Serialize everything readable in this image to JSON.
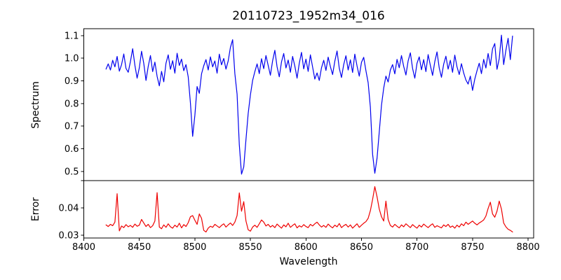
{
  "chart_data": {
    "type": "line",
    "title": "20110723_1952m34_016",
    "xlabel": "Wavelength",
    "grid": false,
    "legend": "none",
    "xlim": [
      8400,
      8805
    ],
    "xticks": [
      8400,
      8450,
      8500,
      8550,
      8600,
      8650,
      8700,
      8750,
      8800
    ],
    "xtick_labels": [
      "8400",
      "8450",
      "8500",
      "8550",
      "8600",
      "8650",
      "8700",
      "8750",
      "8800"
    ],
    "panels": [
      {
        "name": "spectrum",
        "ylabel": "Spectrum",
        "color": "#0000ee",
        "ylim": [
          0.4595,
          1.1305
        ],
        "yticks": [
          0.5,
          0.6,
          0.7,
          0.8,
          0.9,
          1.0,
          1.1
        ],
        "ytick_labels": [
          "0.5",
          "0.6",
          "0.7",
          "0.8",
          "0.9",
          "1.0",
          "1.1"
        ],
        "yticks_mark_only": [],
        "x_start": 8420,
        "x_step": 2,
        "values": [
          0.952,
          0.975,
          0.948,
          0.991,
          0.962,
          1.008,
          0.943,
          0.972,
          1.019,
          0.955,
          0.938,
          0.986,
          1.042,
          0.969,
          0.912,
          0.958,
          1.031,
          0.977,
          0.902,
          0.964,
          1.012,
          0.941,
          0.983,
          0.92,
          0.878,
          0.942,
          0.896,
          0.978,
          1.015,
          0.951,
          0.989,
          0.934,
          1.022,
          0.968,
          0.996,
          0.945,
          0.972,
          0.918,
          0.802,
          0.655,
          0.748,
          0.875,
          0.845,
          0.931,
          0.967,
          0.994,
          0.948,
          1.006,
          0.962,
          0.988,
          0.934,
          1.018,
          0.971,
          0.999,
          0.952,
          0.988,
          1.048,
          1.082,
          0.932,
          0.841,
          0.618,
          0.488,
          0.52,
          0.641,
          0.756,
          0.838,
          0.902,
          0.941,
          0.975,
          0.932,
          0.998,
          0.954,
          1.012,
          0.968,
          0.925,
          0.989,
          1.035,
          0.962,
          0.918,
          0.984,
          1.021,
          0.957,
          0.992,
          0.938,
          1.008,
          0.965,
          0.912,
          0.978,
          1.026,
          0.953,
          0.996,
          0.942,
          1.015,
          0.961,
          0.908,
          0.935,
          0.902,
          0.958,
          0.991,
          0.946,
          1.005,
          0.963,
          0.928,
          0.987,
          1.032,
          0.956,
          0.915,
          0.972,
          1.011,
          0.948,
          0.993,
          0.937,
          1.018,
          0.966,
          0.921,
          0.982,
          1.004,
          0.945,
          0.892,
          0.784,
          0.576,
          0.492,
          0.558,
          0.674,
          0.792,
          0.868,
          0.921,
          0.895,
          0.948,
          0.972,
          0.931,
          0.995,
          0.958,
          1.012,
          0.964,
          0.926,
          0.988,
          1.024,
          0.955,
          0.912,
          0.978,
          1.006,
          0.949,
          0.994,
          0.941,
          1.016,
          0.968,
          0.924,
          0.985,
          1.028,
          0.957,
          0.916,
          0.974,
          1.009,
          0.952,
          0.991,
          0.938,
          1.014,
          0.962,
          0.928,
          0.976,
          0.935,
          0.904,
          0.886,
          0.921,
          0.858,
          0.908,
          0.945,
          0.978,
          0.932,
          0.995,
          0.957,
          1.021,
          0.968,
          1.042,
          1.065,
          0.951,
          0.998,
          1.102,
          0.972,
          1.035,
          1.088,
          0.994,
          1.098
        ]
      },
      {
        "name": "error",
        "ylabel": "Error",
        "color": "#ee0000",
        "ylim": [
          0.029,
          0.05
        ],
        "yticks": [
          0.03,
          0.04
        ],
        "ytick_labels": [
          "0.03",
          "0.04"
        ],
        "yticks_mark_only": [
          0.05
        ],
        "x_start": 8420,
        "x_step": 2,
        "values": [
          0.0338,
          0.0332,
          0.034,
          0.0335,
          0.0348,
          0.0452,
          0.0316,
          0.0334,
          0.0328,
          0.0339,
          0.0331,
          0.0336,
          0.0329,
          0.0341,
          0.0333,
          0.0337,
          0.0358,
          0.0345,
          0.0332,
          0.034,
          0.0328,
          0.0335,
          0.0352,
          0.0456,
          0.033,
          0.0324,
          0.0338,
          0.0329,
          0.0342,
          0.0331,
          0.0326,
          0.0337,
          0.033,
          0.0344,
          0.0327,
          0.0339,
          0.0332,
          0.0346,
          0.0368,
          0.0372,
          0.0355,
          0.034,
          0.0378,
          0.0362,
          0.0318,
          0.0312,
          0.0326,
          0.0333,
          0.0329,
          0.034,
          0.0334,
          0.0328,
          0.0336,
          0.0342,
          0.033,
          0.0338,
          0.0345,
          0.0336,
          0.0348,
          0.0372,
          0.0455,
          0.0388,
          0.0423,
          0.0352,
          0.032,
          0.0315,
          0.033,
          0.0337,
          0.0329,
          0.0342,
          0.0356,
          0.0348,
          0.0334,
          0.034,
          0.033,
          0.0336,
          0.0328,
          0.0341,
          0.0333,
          0.0326,
          0.0338,
          0.0331,
          0.0344,
          0.0329,
          0.0336,
          0.0342,
          0.0327,
          0.0335,
          0.033,
          0.0339,
          0.0332,
          0.0328,
          0.034,
          0.0334,
          0.0342,
          0.0348,
          0.0338,
          0.033,
          0.0336,
          0.0329,
          0.0341,
          0.0333,
          0.0327,
          0.0337,
          0.0331,
          0.0343,
          0.0328,
          0.0335,
          0.034,
          0.033,
          0.0338,
          0.0326,
          0.0334,
          0.0342,
          0.0329,
          0.0337,
          0.0344,
          0.035,
          0.0362,
          0.039,
          0.0431,
          0.0478,
          0.0441,
          0.0396,
          0.0368,
          0.0352,
          0.0425,
          0.0358,
          0.0336,
          0.033,
          0.034,
          0.0333,
          0.0327,
          0.0338,
          0.0331,
          0.0342,
          0.0335,
          0.0328,
          0.0339,
          0.0332,
          0.0326,
          0.0337,
          0.033,
          0.0341,
          0.0334,
          0.0328,
          0.0336,
          0.0342,
          0.0329,
          0.0335,
          0.0331,
          0.0327,
          0.0338,
          0.0332,
          0.034,
          0.0329,
          0.0334,
          0.0326,
          0.0337,
          0.033,
          0.0342,
          0.0335,
          0.0348,
          0.034,
          0.0346,
          0.0352,
          0.0344,
          0.0338,
          0.0345,
          0.035,
          0.0356,
          0.037,
          0.0398,
          0.0421,
          0.0378,
          0.0366,
          0.0388,
          0.0425,
          0.0396,
          0.0345,
          0.0331,
          0.0322,
          0.0318,
          0.0312
        ]
      }
    ]
  }
}
